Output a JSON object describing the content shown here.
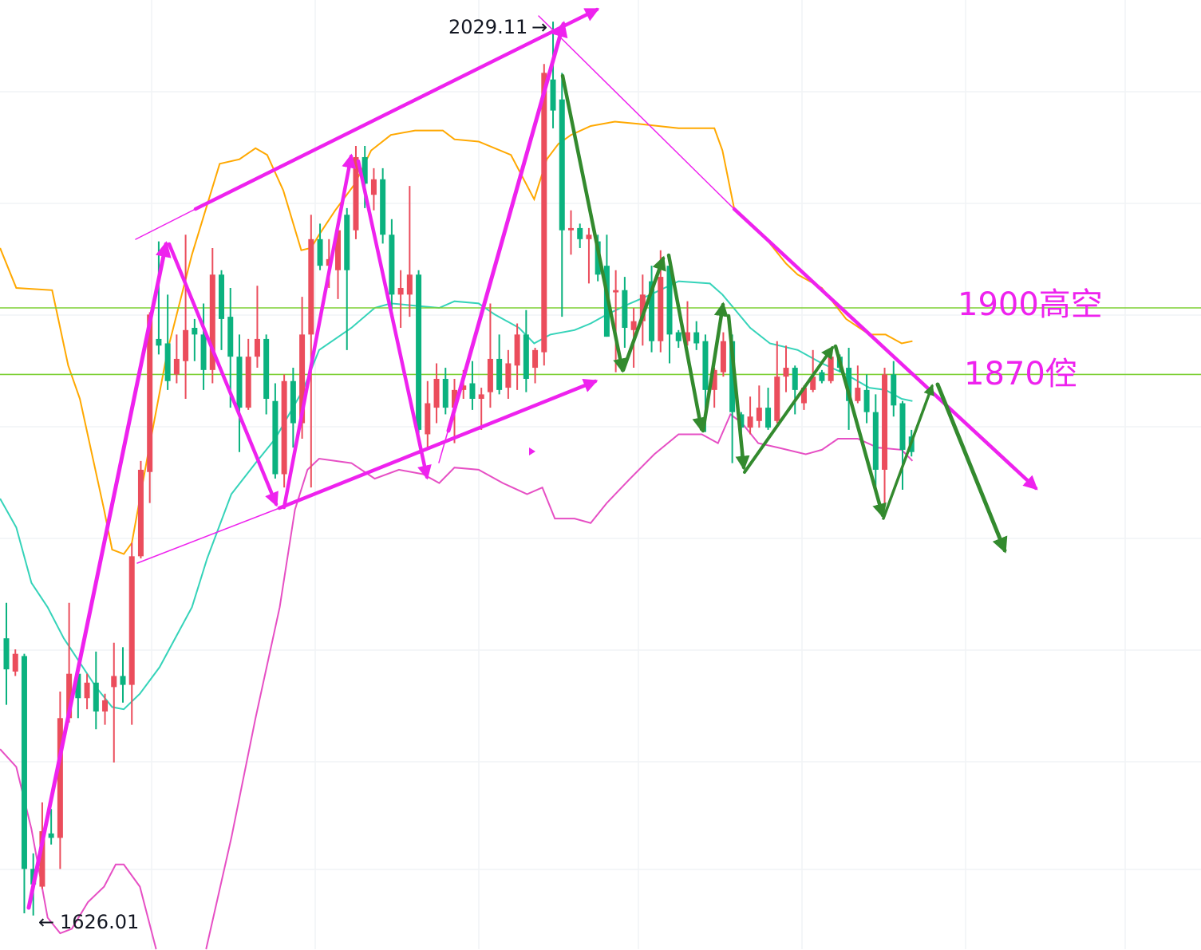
{
  "chart_data": {
    "type": "candlestick",
    "title": "",
    "xlabel": "",
    "ylabel": "",
    "grid": true,
    "colors": {
      "up": "#eb4d5c",
      "down": "#0bb27f",
      "upper_band": "#ffa800",
      "middle_band": "#35d3b9",
      "lower_band": "#e64fc4",
      "level_line": "#7ed035",
      "annotation": "#ee22ee",
      "wave_arrow": "#338a2e"
    },
    "candles_ohlc": [
      [
        1751,
        1767,
        1721,
        1737
      ],
      [
        1736,
        1746,
        1734,
        1744
      ],
      [
        1743,
        1744,
        1627,
        1647
      ],
      [
        1647,
        1654,
        1626.01,
        1640
      ],
      [
        1639,
        1677,
        1638,
        1664
      ],
      [
        1663,
        1674,
        1658,
        1661
      ],
      [
        1661,
        1727,
        1647,
        1715
      ],
      [
        1715,
        1767,
        1713,
        1735
      ],
      [
        1735,
        1736,
        1715,
        1724
      ],
      [
        1724,
        1735,
        1719,
        1731
      ],
      [
        1731,
        1745,
        1710,
        1718
      ],
      [
        1718,
        1726,
        1712,
        1723
      ],
      [
        1729,
        1749,
        1695,
        1734
      ],
      [
        1734,
        1747,
        1722,
        1730
      ],
      [
        1730,
        1794,
        1712,
        1788
      ],
      [
        1788,
        1831,
        1787,
        1827
      ],
      [
        1826,
        1898,
        1812,
        1897
      ],
      [
        1886,
        1930,
        1879,
        1883
      ],
      [
        1884,
        1906,
        1863,
        1867
      ],
      [
        1870,
        1888,
        1866,
        1877
      ],
      [
        1876,
        1933,
        1859,
        1890
      ],
      [
        1891,
        1895,
        1876,
        1888
      ],
      [
        1888,
        1902,
        1863,
        1872
      ],
      [
        1872,
        1927,
        1866,
        1915
      ],
      [
        1915,
        1917,
        1881,
        1895
      ],
      [
        1896,
        1909,
        1855,
        1878
      ],
      [
        1878,
        1888,
        1835,
        1855
      ],
      [
        1855,
        1886,
        1854,
        1878
      ],
      [
        1878,
        1910,
        1873,
        1886
      ],
      [
        1886,
        1888,
        1852,
        1859
      ],
      [
        1858,
        1866,
        1823,
        1825
      ],
      [
        1825,
        1870,
        1819,
        1867
      ],
      [
        1867,
        1873,
        1837,
        1848
      ],
      [
        1848,
        1905,
        1841,
        1888
      ],
      [
        1888,
        1942,
        1819,
        1931
      ],
      [
        1931,
        1938,
        1917,
        1919
      ],
      [
        1919,
        1931,
        1909,
        1922
      ],
      [
        1917,
        1940,
        1904,
        1935
      ],
      [
        1942,
        1945,
        1881,
        1917
      ],
      [
        1935,
        1973,
        1931,
        1968
      ],
      [
        1968,
        1973,
        1945,
        1956
      ],
      [
        1951,
        1963,
        1944,
        1958
      ],
      [
        1958,
        1963,
        1929,
        1933
      ],
      [
        1933,
        1940,
        1899,
        1906
      ],
      [
        1906,
        1917,
        1891,
        1909
      ],
      [
        1906,
        1955,
        1896,
        1915
      ],
      [
        1915,
        1917,
        1843,
        1845
      ],
      [
        1843,
        1867,
        1837,
        1857
      ],
      [
        1855,
        1875,
        1848,
        1868
      ],
      [
        1868,
        1873,
        1852,
        1855
      ],
      [
        1855,
        1868,
        1839,
        1863
      ],
      [
        1863,
        1872,
        1859,
        1865
      ],
      [
        1866,
        1876,
        1854,
        1859
      ],
      [
        1859,
        1864,
        1845,
        1861
      ],
      [
        1862,
        1902,
        1855,
        1877
      ],
      [
        1877,
        1888,
        1861,
        1863
      ],
      [
        1864,
        1881,
        1859,
        1875
      ],
      [
        1874,
        1893,
        1863,
        1888
      ],
      [
        1888,
        1899,
        1862,
        1868
      ],
      [
        1873,
        1882,
        1866,
        1881
      ],
      [
        1880,
        2010,
        1874,
        2006
      ],
      [
        2003,
        2029.11,
        1981,
        1989
      ],
      [
        1994,
        2006,
        1896,
        1935
      ],
      [
        1935,
        1944,
        1924,
        1936
      ],
      [
        1936,
        1938,
        1927,
        1931
      ],
      [
        1931,
        1936,
        1911,
        1933
      ],
      [
        1930,
        1933,
        1912,
        1915
      ],
      [
        1919,
        1933,
        1887,
        1887
      ],
      [
        1907,
        1917,
        1871,
        1908
      ],
      [
        1908,
        1914,
        1882,
        1891
      ],
      [
        1890,
        1900,
        1873,
        1894
      ],
      [
        1894,
        1915,
        1883,
        1906
      ],
      [
        1912,
        1919,
        1880,
        1885
      ],
      [
        1885,
        1926,
        1880,
        1914
      ],
      [
        1919,
        1919,
        1875,
        1888
      ],
      [
        1889,
        1890,
        1882,
        1885
      ],
      [
        1885,
        1903,
        1883,
        1889
      ],
      [
        1889,
        1894,
        1881,
        1884
      ],
      [
        1885,
        1888,
        1844,
        1863
      ],
      [
        1863,
        1873,
        1855,
        1872
      ],
      [
        1871,
        1889,
        1869,
        1885
      ],
      [
        1885,
        1888,
        1830,
        1853
      ],
      [
        1852,
        1853,
        1830,
        1846
      ],
      [
        1846,
        1860,
        1843,
        1851
      ],
      [
        1849,
        1865,
        1846,
        1855
      ],
      [
        1855,
        1864,
        1845,
        1846
      ],
      [
        1849,
        1885,
        1848,
        1869
      ],
      [
        1869,
        1883,
        1862,
        1873
      ],
      [
        1873,
        1874,
        1852,
        1863
      ],
      [
        1857,
        1865,
        1854,
        1864
      ],
      [
        1863,
        1881,
        1862,
        1869
      ],
      [
        1871,
        1872,
        1866,
        1867
      ],
      [
        1867,
        1880,
        1866,
        1878
      ],
      [
        1878,
        1879,
        1871,
        1873
      ],
      [
        1873,
        1882,
        1845,
        1858
      ],
      [
        1858,
        1874,
        1857,
        1864
      ],
      [
        1863,
        1870,
        1848,
        1853
      ],
      [
        1853,
        1861,
        1816,
        1827
      ],
      [
        1827,
        1873,
        1810,
        1870
      ],
      [
        1870,
        1876,
        1851,
        1856
      ],
      [
        1857,
        1858,
        1818,
        1836
      ],
      [
        1842,
        1845,
        1833,
        1835
      ]
    ],
    "bands": {
      "upper": [
        [
          -0.7,
          1927
        ],
        [
          1.1,
          1909
        ],
        [
          5.1,
          1908
        ],
        [
          6.9,
          1874
        ],
        [
          8.2,
          1859
        ],
        [
          10.9,
          1809
        ],
        [
          11.8,
          1791
        ],
        [
          13.1,
          1789
        ],
        [
          14.0,
          1794
        ],
        [
          15.8,
          1834
        ],
        [
          18.0,
          1881
        ],
        [
          20.7,
          1924
        ],
        [
          23.8,
          1965
        ],
        [
          26.0,
          1967
        ],
        [
          27.8,
          1972
        ],
        [
          29.1,
          1969
        ],
        [
          30.9,
          1953
        ],
        [
          32.9,
          1926
        ],
        [
          34.0,
          1927
        ],
        [
          34.9,
          1933
        ],
        [
          36.7,
          1944
        ],
        [
          38.9,
          1956
        ],
        [
          40.7,
          1971
        ],
        [
          42.9,
          1978
        ],
        [
          45.6,
          1980
        ],
        [
          48.7,
          1980
        ],
        [
          50.0,
          1976
        ],
        [
          52.7,
          1975
        ],
        [
          56.3,
          1969
        ],
        [
          58.9,
          1949
        ],
        [
          60.3,
          1967
        ],
        [
          61.6,
          1974
        ],
        [
          63.0,
          1978
        ],
        [
          65.2,
          1982
        ],
        [
          67.9,
          1984
        ],
        [
          70.5,
          1983
        ],
        [
          75.0,
          1981
        ],
        [
          79.0,
          1981
        ],
        [
          79.9,
          1971
        ],
        [
          81.2,
          1945
        ],
        [
          83.0,
          1938
        ],
        [
          84.8,
          1931
        ],
        [
          87.0,
          1920
        ],
        [
          88.3,
          1915
        ],
        [
          91.0,
          1909
        ],
        [
          93.7,
          1895
        ],
        [
          96.3,
          1888
        ],
        [
          98.1,
          1888
        ],
        [
          99.9,
          1884
        ],
        [
          101.1,
          1885
        ]
      ],
      "middle": [
        [
          -0.7,
          1814
        ],
        [
          1.1,
          1801
        ],
        [
          2.8,
          1776
        ],
        [
          4.6,
          1765
        ],
        [
          6.4,
          1751
        ],
        [
          8.2,
          1740
        ],
        [
          10.0,
          1729
        ],
        [
          11.8,
          1720
        ],
        [
          13.1,
          1719
        ],
        [
          14.9,
          1726
        ],
        [
          17.1,
          1738
        ],
        [
          20.7,
          1765
        ],
        [
          22.4,
          1787
        ],
        [
          25.1,
          1816
        ],
        [
          27.8,
          1830
        ],
        [
          30.0,
          1841
        ],
        [
          33.1,
          1863
        ],
        [
          34.9,
          1881
        ],
        [
          36.7,
          1886
        ],
        [
          38.5,
          1891
        ],
        [
          41.1,
          1900
        ],
        [
          42.9,
          1902
        ],
        [
          45.6,
          1901
        ],
        [
          48.3,
          1900
        ],
        [
          50.0,
          1903
        ],
        [
          52.7,
          1902
        ],
        [
          54.5,
          1897
        ],
        [
          57.2,
          1891
        ],
        [
          58.9,
          1884
        ],
        [
          60.7,
          1888
        ],
        [
          63.4,
          1890
        ],
        [
          65.2,
          1893
        ],
        [
          67.0,
          1897
        ],
        [
          69.6,
          1902
        ],
        [
          71.9,
          1906
        ],
        [
          75.0,
          1912
        ],
        [
          78.5,
          1911
        ],
        [
          79.9,
          1906
        ],
        [
          83.0,
          1891
        ],
        [
          85.2,
          1884
        ],
        [
          88.3,
          1881
        ],
        [
          91.0,
          1875
        ],
        [
          93.7,
          1870
        ],
        [
          96.3,
          1864
        ],
        [
          98.1,
          1863
        ],
        [
          99.9,
          1859
        ],
        [
          101.1,
          1858
        ]
      ],
      "lower": [
        [
          -0.7,
          1701
        ],
        [
          1.1,
          1693
        ],
        [
          2.8,
          1665
        ],
        [
          4.6,
          1625
        ],
        [
          6.0,
          1618
        ],
        [
          7.3,
          1620
        ],
        [
          9.1,
          1632
        ],
        [
          10.9,
          1639
        ],
        [
          12.2,
          1649
        ],
        [
          13.1,
          1649
        ],
        [
          14.9,
          1639
        ],
        [
          16.7,
          1611
        ],
        [
          19.3,
          1585
        ],
        [
          22.3,
          1611
        ],
        [
          25.1,
          1661
        ],
        [
          27.8,
          1715
        ],
        [
          30.5,
          1765
        ],
        [
          32.2,
          1809
        ],
        [
          33.6,
          1827
        ],
        [
          34.9,
          1832
        ],
        [
          38.5,
          1830
        ],
        [
          41.1,
          1823
        ],
        [
          43.8,
          1827
        ],
        [
          46.5,
          1825
        ],
        [
          48.3,
          1821
        ],
        [
          50.0,
          1828
        ],
        [
          52.7,
          1827
        ],
        [
          55.4,
          1821
        ],
        [
          58.1,
          1816
        ],
        [
          59.8,
          1819
        ],
        [
          61.2,
          1805
        ],
        [
          63.4,
          1805
        ],
        [
          65.2,
          1803
        ],
        [
          67.0,
          1812
        ],
        [
          69.6,
          1823
        ],
        [
          72.3,
          1834
        ],
        [
          75.0,
          1843
        ],
        [
          77.6,
          1843
        ],
        [
          79.4,
          1839
        ],
        [
          80.8,
          1852
        ],
        [
          82.1,
          1848
        ],
        [
          83.9,
          1839
        ],
        [
          86.1,
          1837
        ],
        [
          89.2,
          1834
        ],
        [
          91.0,
          1836
        ],
        [
          92.8,
          1841
        ],
        [
          95.0,
          1841
        ],
        [
          97.2,
          1837
        ],
        [
          99.9,
          1836
        ],
        [
          101.1,
          1831
        ]
      ]
    },
    "levels": [
      {
        "price": 1900,
        "label": "1900高空"
      },
      {
        "price": 1870,
        "label": "1870倥"
      }
    ],
    "high_label": "2029.11",
    "high_arrow": "→",
    "low_label": "1626.01",
    "low_arrow": "←"
  }
}
